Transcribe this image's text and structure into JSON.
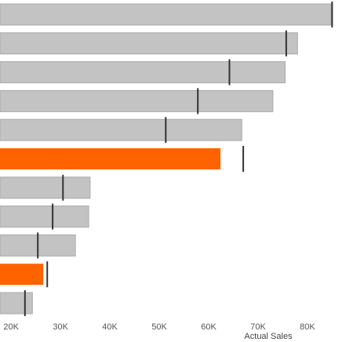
{
  "chart_data": {
    "type": "bar",
    "variant": "bullet",
    "orientation": "horizontal",
    "xlabel": "Actual Sales",
    "xlim": [
      12500,
      87000
    ],
    "ticks": [
      {
        "value": 20000,
        "label": "20K"
      },
      {
        "value": 30000,
        "label": "30K"
      },
      {
        "value": 40000,
        "label": "40K"
      },
      {
        "value": 50000,
        "label": "50K"
      },
      {
        "value": 60000,
        "label": "60K"
      },
      {
        "value": 70000,
        "label": "70K"
      },
      {
        "value": 80000,
        "label": "80K"
      }
    ],
    "bars": [
      {
        "actual": 84800,
        "target": 85000,
        "highlight": false
      },
      {
        "actual": 78000,
        "target": 75700,
        "highlight": false
      },
      {
        "actual": 75500,
        "target": 64200,
        "highlight": false
      },
      {
        "actual": 73000,
        "target": 57800,
        "highlight": false
      },
      {
        "actual": 66700,
        "target": 51300,
        "highlight": false
      },
      {
        "actual": 62400,
        "target": 67000,
        "highlight": true
      },
      {
        "actual": 36000,
        "target": 30500,
        "highlight": false
      },
      {
        "actual": 35700,
        "target": 28400,
        "highlight": false
      },
      {
        "actual": 33000,
        "target": 25400,
        "highlight": false
      },
      {
        "actual": 26500,
        "target": 27300,
        "highlight": true
      },
      {
        "actual": 24300,
        "target": 22800,
        "highlight": false
      }
    ],
    "grid": false,
    "colors": {
      "bar": "#c3c3c3",
      "bar_border": "#a9a9a9",
      "highlight": "#ff6300",
      "target_line": "#333333",
      "axis_text": "#555555"
    }
  },
  "axis": {
    "x_title": "Actual Sales"
  }
}
